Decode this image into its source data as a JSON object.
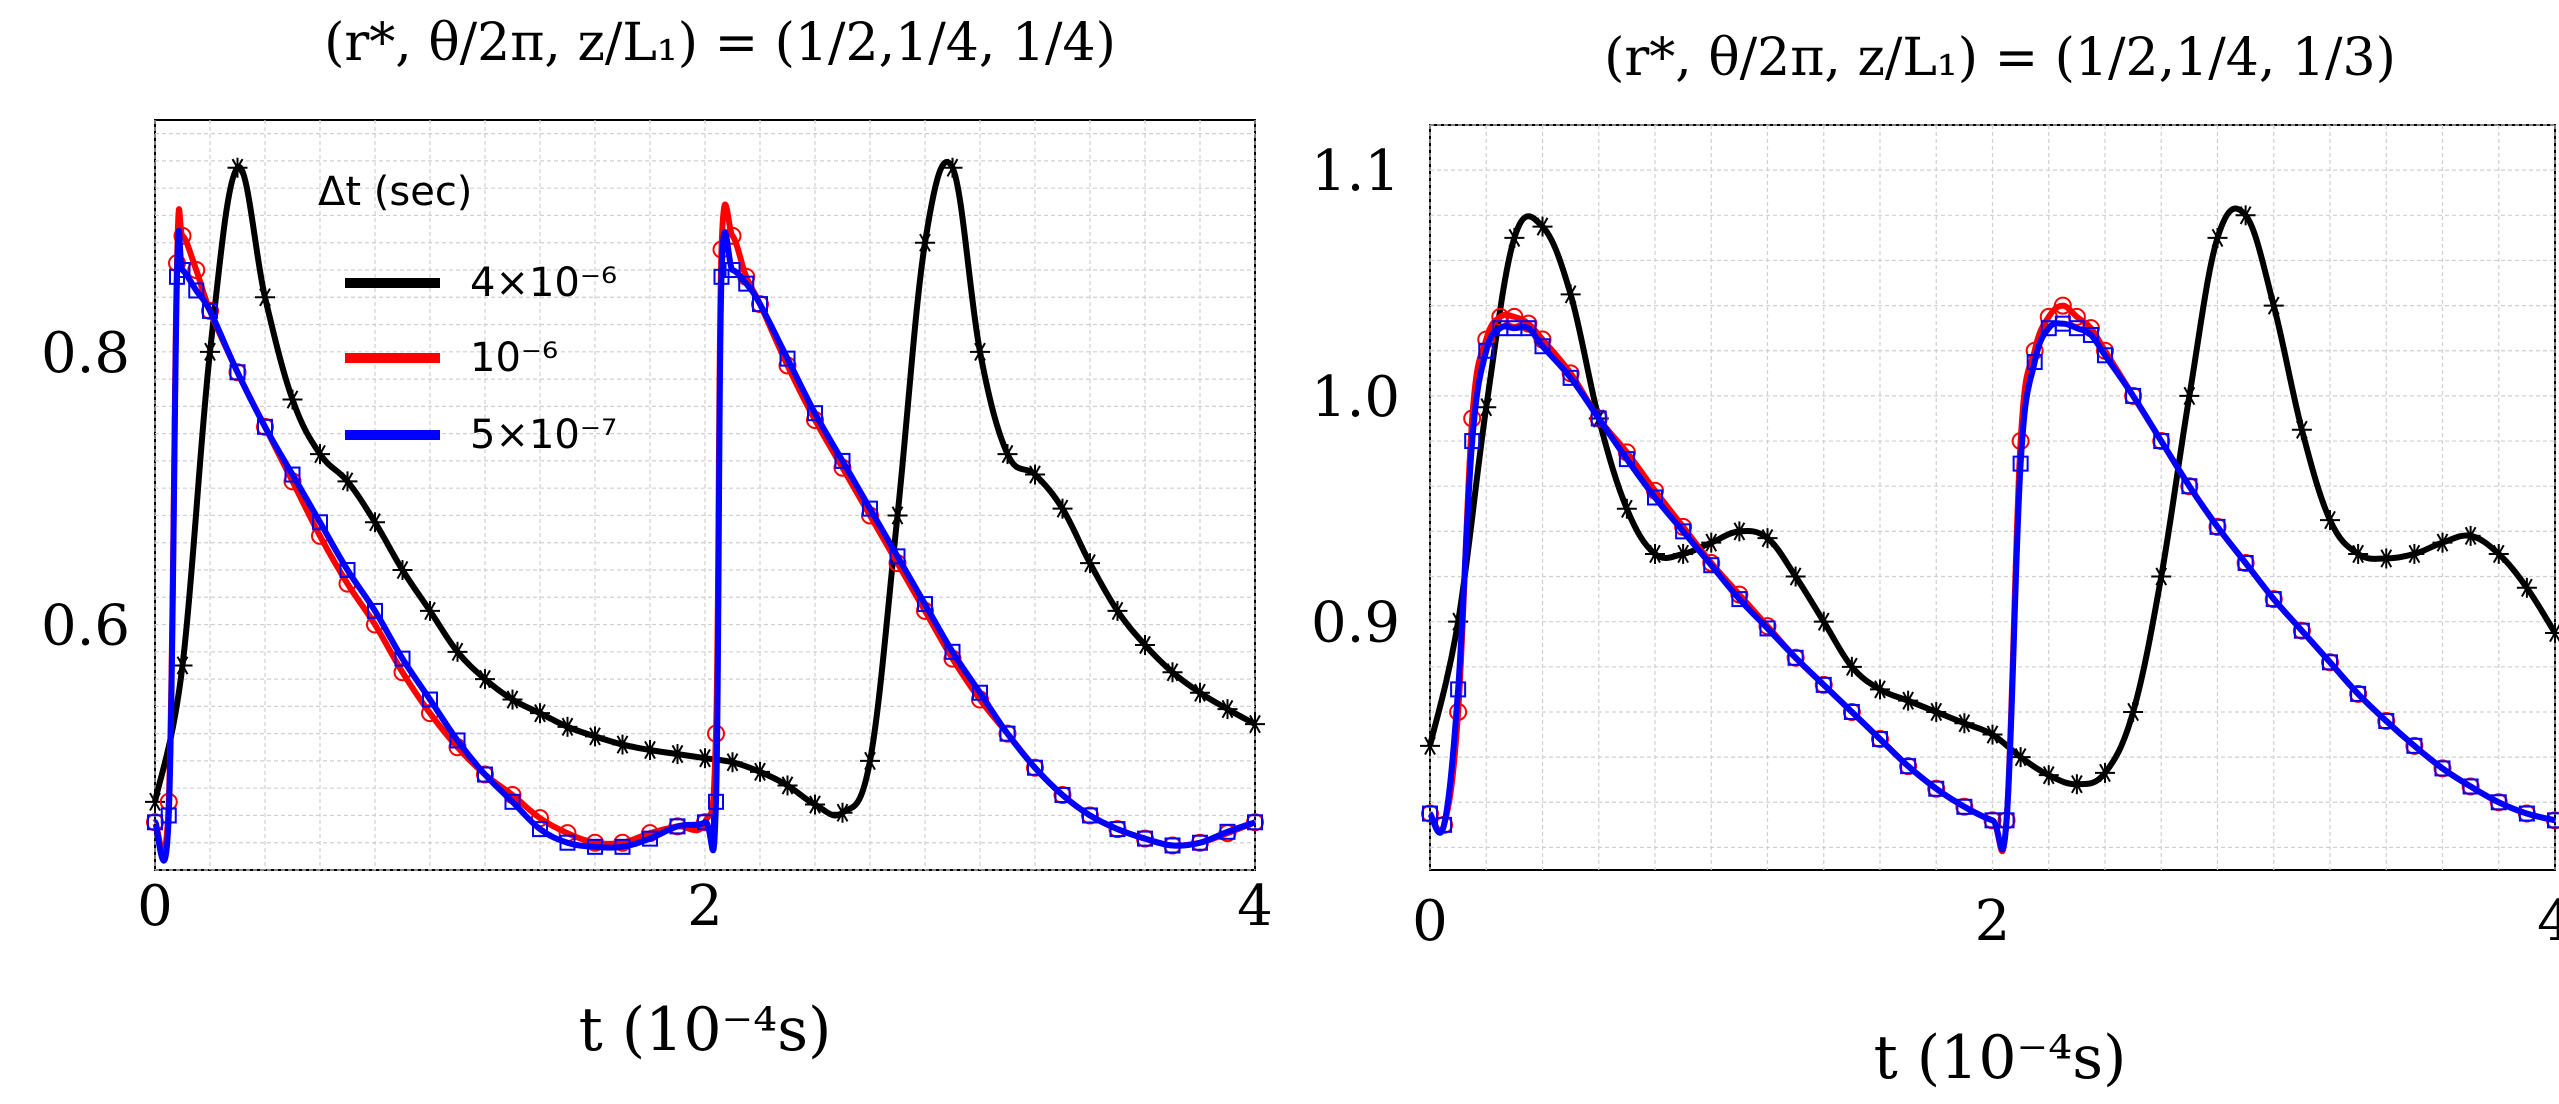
{
  "chart_data": [
    {
      "type": "line",
      "title": "(r*, θ/2π, z/L₁) = (1/2,1/4, 1/4)",
      "xlabel": "t (10⁻⁴s)",
      "ylabel": "",
      "xlim": [
        0,
        4
      ],
      "ylim": [
        0.42,
        0.97
      ],
      "xticks": [
        "0",
        "2",
        "4"
      ],
      "yticks": [
        "0.6",
        "0.8"
      ],
      "grid": true,
      "legend": {
        "title": "Δt (sec)",
        "placement": "top-left",
        "entries": [
          "4×10⁻⁶",
          "10⁻⁶",
          "5×10⁻⁷"
        ]
      },
      "series": [
        {
          "name": "4×10⁻⁶",
          "color": "#000000",
          "marker": "asterisk",
          "x": [
            0,
            0.1,
            0.2,
            0.3,
            0.4,
            0.5,
            0.6,
            0.7,
            0.8,
            0.9,
            1.0,
            1.1,
            1.2,
            1.3,
            1.4,
            1.5,
            1.6,
            1.7,
            1.8,
            1.9,
            2.0,
            2.1,
            2.2,
            2.3,
            2.4,
            2.5,
            2.6,
            2.7,
            2.8,
            2.9,
            3.0,
            3.1,
            3.2,
            3.3,
            3.4,
            3.5,
            3.6,
            3.7,
            3.8,
            3.9,
            4.0
          ],
          "y": [
            0.47,
            0.57,
            0.8,
            0.935,
            0.84,
            0.765,
            0.725,
            0.705,
            0.675,
            0.64,
            0.61,
            0.58,
            0.56,
            0.545,
            0.535,
            0.525,
            0.518,
            0.512,
            0.508,
            0.505,
            0.502,
            0.499,
            0.492,
            0.482,
            0.468,
            0.462,
            0.5,
            0.68,
            0.88,
            0.935,
            0.8,
            0.725,
            0.71,
            0.685,
            0.645,
            0.61,
            0.585,
            0.565,
            0.55,
            0.538,
            0.527
          ]
        },
        {
          "name": "10⁻⁶",
          "color": "#ff0000",
          "marker": "circle",
          "x": [
            0,
            0.05,
            0.08,
            0.1,
            0.15,
            0.2,
            0.3,
            0.4,
            0.5,
            0.6,
            0.7,
            0.8,
            0.9,
            1.0,
            1.1,
            1.2,
            1.3,
            1.4,
            1.5,
            1.6,
            1.7,
            1.8,
            1.9,
            2.0,
            2.04,
            2.06,
            2.1,
            2.15,
            2.2,
            2.3,
            2.4,
            2.5,
            2.6,
            2.7,
            2.8,
            2.9,
            3.0,
            3.1,
            3.2,
            3.3,
            3.4,
            3.5,
            3.6,
            3.7,
            3.8,
            3.9,
            4.0
          ],
          "y": [
            0.455,
            0.47,
            0.865,
            0.885,
            0.86,
            0.83,
            0.785,
            0.745,
            0.705,
            0.665,
            0.63,
            0.6,
            0.565,
            0.535,
            0.51,
            0.49,
            0.475,
            0.458,
            0.447,
            0.44,
            0.44,
            0.447,
            0.452,
            0.455,
            0.52,
            0.875,
            0.885,
            0.855,
            0.835,
            0.79,
            0.75,
            0.715,
            0.68,
            0.645,
            0.61,
            0.575,
            0.545,
            0.52,
            0.495,
            0.475,
            0.46,
            0.45,
            0.443,
            0.438,
            0.44,
            0.447,
            0.455
          ]
        },
        {
          "name": "5×10⁻⁷",
          "color": "#0000ff",
          "marker": "square",
          "x": [
            0,
            0.05,
            0.08,
            0.1,
            0.15,
            0.2,
            0.3,
            0.4,
            0.5,
            0.6,
            0.7,
            0.8,
            0.9,
            1.0,
            1.1,
            1.2,
            1.3,
            1.4,
            1.5,
            1.6,
            1.7,
            1.8,
            1.9,
            2.0,
            2.04,
            2.06,
            2.1,
            2.15,
            2.2,
            2.3,
            2.4,
            2.5,
            2.6,
            2.7,
            2.8,
            2.9,
            3.0,
            3.1,
            3.2,
            3.3,
            3.4,
            3.5,
            3.6,
            3.7,
            3.8,
            3.9,
            4.0
          ],
          "y": [
            0.455,
            0.46,
            0.855,
            0.86,
            0.845,
            0.83,
            0.785,
            0.745,
            0.71,
            0.675,
            0.64,
            0.61,
            0.575,
            0.545,
            0.515,
            0.49,
            0.47,
            0.45,
            0.44,
            0.437,
            0.437,
            0.443,
            0.452,
            0.455,
            0.47,
            0.855,
            0.86,
            0.85,
            0.835,
            0.795,
            0.755,
            0.72,
            0.685,
            0.65,
            0.615,
            0.58,
            0.55,
            0.52,
            0.495,
            0.475,
            0.46,
            0.45,
            0.443,
            0.438,
            0.44,
            0.448,
            0.455
          ]
        }
      ]
    },
    {
      "type": "line",
      "title": "(r*, θ/2π, z/L₁) = (1/2,1/4, 1/3)",
      "xlabel": "t (10⁻⁴s)",
      "ylabel": "",
      "xlim": [
        0,
        4
      ],
      "ylim": [
        0.79,
        1.12
      ],
      "xticks": [
        "0",
        "2",
        "4"
      ],
      "yticks": [
        "0.9",
        "1.0",
        "1.1"
      ],
      "grid": true,
      "series": [
        {
          "name": "4×10⁻⁶",
          "color": "#000000",
          "marker": "asterisk",
          "x": [
            0,
            0.1,
            0.2,
            0.3,
            0.4,
            0.5,
            0.6,
            0.7,
            0.8,
            0.9,
            1.0,
            1.1,
            1.2,
            1.3,
            1.4,
            1.5,
            1.6,
            1.7,
            1.8,
            1.9,
            2.0,
            2.1,
            2.2,
            2.3,
            2.4,
            2.5,
            2.6,
            2.7,
            2.8,
            2.9,
            3.0,
            3.1,
            3.2,
            3.3,
            3.4,
            3.5,
            3.6,
            3.7,
            3.8,
            3.9,
            4.0
          ],
          "y": [
            0.845,
            0.9,
            0.995,
            1.07,
            1.075,
            1.045,
            0.99,
            0.95,
            0.93,
            0.93,
            0.935,
            0.94,
            0.937,
            0.92,
            0.9,
            0.88,
            0.87,
            0.865,
            0.86,
            0.855,
            0.85,
            0.84,
            0.832,
            0.828,
            0.833,
            0.86,
            0.92,
            1.0,
            1.07,
            1.08,
            1.04,
            0.985,
            0.945,
            0.93,
            0.928,
            0.93,
            0.935,
            0.938,
            0.93,
            0.915,
            0.895
          ]
        },
        {
          "name": "10⁻⁶",
          "color": "#ff0000",
          "marker": "circle",
          "x": [
            0,
            0.05,
            0.1,
            0.15,
            0.2,
            0.25,
            0.3,
            0.35,
            0.4,
            0.5,
            0.6,
            0.7,
            0.8,
            0.9,
            1.0,
            1.1,
            1.2,
            1.3,
            1.4,
            1.5,
            1.6,
            1.7,
            1.8,
            1.9,
            2.0,
            2.05,
            2.1,
            2.15,
            2.2,
            2.25,
            2.3,
            2.35,
            2.4,
            2.5,
            2.6,
            2.7,
            2.8,
            2.9,
            3.0,
            3.1,
            3.2,
            3.3,
            3.4,
            3.5,
            3.6,
            3.7,
            3.8,
            3.9,
            4.0
          ],
          "y": [
            0.815,
            0.81,
            0.86,
            0.99,
            1.025,
            1.035,
            1.035,
            1.032,
            1.025,
            1.01,
            0.99,
            0.975,
            0.958,
            0.942,
            0.926,
            0.912,
            0.898,
            0.884,
            0.872,
            0.86,
            0.848,
            0.836,
            0.826,
            0.818,
            0.812,
            0.812,
            0.98,
            1.02,
            1.035,
            1.04,
            1.035,
            1.03,
            1.02,
            1.0,
            0.98,
            0.96,
            0.942,
            0.926,
            0.91,
            0.896,
            0.882,
            0.868,
            0.856,
            0.845,
            0.835,
            0.827,
            0.82,
            0.815,
            0.812
          ]
        },
        {
          "name": "5×10⁻⁷",
          "color": "#0000ff",
          "marker": "square",
          "x": [
            0,
            0.05,
            0.1,
            0.15,
            0.2,
            0.25,
            0.3,
            0.35,
            0.4,
            0.5,
            0.6,
            0.7,
            0.8,
            0.9,
            1.0,
            1.1,
            1.2,
            1.3,
            1.4,
            1.5,
            1.6,
            1.7,
            1.8,
            1.9,
            2.0,
            2.05,
            2.1,
            2.15,
            2.2,
            2.25,
            2.3,
            2.35,
            2.4,
            2.5,
            2.6,
            2.7,
            2.8,
            2.9,
            3.0,
            3.1,
            3.2,
            3.3,
            3.4,
            3.5,
            3.6,
            3.7,
            3.8,
            3.9,
            4.0
          ],
          "y": [
            0.815,
            0.81,
            0.87,
            0.98,
            1.02,
            1.03,
            1.03,
            1.03,
            1.022,
            1.008,
            0.99,
            0.972,
            0.955,
            0.94,
            0.925,
            0.91,
            0.897,
            0.884,
            0.872,
            0.86,
            0.848,
            0.836,
            0.826,
            0.818,
            0.812,
            0.812,
            0.97,
            1.015,
            1.03,
            1.032,
            1.03,
            1.027,
            1.018,
            1.0,
            0.98,
            0.96,
            0.942,
            0.926,
            0.91,
            0.896,
            0.882,
            0.868,
            0.856,
            0.845,
            0.835,
            0.827,
            0.82,
            0.815,
            0.812
          ]
        }
      ]
    }
  ]
}
